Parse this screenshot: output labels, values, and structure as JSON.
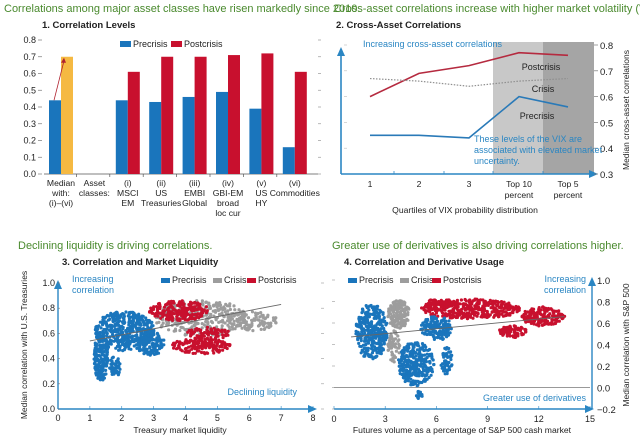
{
  "colors": {
    "precrisis": "#1a75bc",
    "crisis": "#9d9d9d",
    "postcrisis": "#c8102e",
    "median_post": "#f5b942",
    "headline": "#4a8a2e",
    "annotation": "#2a86c3",
    "shade_light": "#c8c8c8",
    "shade_dark": "#a5a5a5"
  },
  "headlines": {
    "h1": "Correlations among major asset classes have risen markedly since 2010.",
    "h2": "Cross-asset correlations increase with higher market volatility (VIX).",
    "h3": "Declining liquidity is driving correlations.",
    "h4": "Greater use of derivatives is also driving correlations higher."
  },
  "chart_data": [
    {
      "type": "bar",
      "title": "1. Correlation Levels",
      "legend": [
        "Precrisis",
        "Postcrisis"
      ],
      "legend_position": "top",
      "ylim": [
        0,
        0.8
      ],
      "yticks": [
        "0.0",
        "0.1",
        "0.2",
        "0.3",
        "0.4",
        "0.5",
        "0.6",
        "0.7",
        "0.8"
      ],
      "categories": [
        [
          "Median",
          "with:",
          "(i)–(vi)"
        ],
        [
          "Asset",
          "classes:"
        ],
        [
          "(i)",
          "MSCI",
          "EM"
        ],
        [
          "(ii)",
          "US",
          "Treasuries"
        ],
        [
          "(iii)",
          "EMBI",
          "Global"
        ],
        [
          "(iv)",
          "GBI-EM",
          "broad",
          "loc cur"
        ],
        [
          "(v)",
          "US",
          "HY"
        ],
        [
          "(vi)",
          "Commodities"
        ]
      ],
      "series": [
        {
          "name": "Precrisis",
          "values": [
            0.44,
            null,
            0.44,
            0.43,
            0.46,
            0.49,
            0.39,
            0.16
          ]
        },
        {
          "name": "Postcrisis",
          "values": [
            0.7,
            null,
            0.61,
            0.7,
            0.7,
            0.71,
            0.72,
            0.61
          ]
        }
      ],
      "median_arrow": {
        "from": 0.44,
        "to": 0.7
      }
    },
    {
      "type": "line",
      "title": "2. Cross-Asset Correlations",
      "xlabel": "Quartiles of VIX probability distribution",
      "ylabel": "Median cross-asset correlations",
      "ylim": [
        0.3,
        0.8
      ],
      "yticks": [
        "0.3",
        "0.4",
        "0.5",
        "0.6",
        "0.7",
        "0.8"
      ],
      "categories": [
        [
          "1"
        ],
        [
          "2"
        ],
        [
          "3"
        ],
        [
          "Top 10",
          "percent"
        ],
        [
          "Top 5",
          "percent"
        ]
      ],
      "series": [
        {
          "name": "Postcrisis",
          "values": [
            0.6,
            0.69,
            0.72,
            0.77,
            0.76
          ]
        },
        {
          "name": "Crisis",
          "values": [
            0.67,
            0.66,
            0.64,
            0.66,
            0.67
          ]
        },
        {
          "name": "Precrisis",
          "values": [
            0.45,
            0.45,
            0.44,
            0.6,
            0.56
          ]
        }
      ],
      "annotations": {
        "top": "Increasing cross-asset correlations",
        "box": [
          "These levels of the VIX are",
          "associated with elevated market",
          "uncertainty."
        ],
        "labels": [
          "Postcrisis",
          "Crisis",
          "Precrisis"
        ]
      }
    },
    {
      "type": "scatter",
      "title": "3. Correlation and Market Liquidity",
      "xlabel": "Treasury market liquidity",
      "ylabel": "Median correlation with U.S. Treasuries",
      "xlim": [
        0,
        8
      ],
      "ylim": [
        0,
        1.0
      ],
      "xticks": [
        "0",
        "1",
        "2",
        "3",
        "4",
        "5",
        "6",
        "7",
        "8"
      ],
      "yticks": [
        "0.0",
        "0.2",
        "0.4",
        "0.6",
        "0.8",
        "1.0"
      ],
      "legend": [
        "Precrisis",
        "Crisis",
        "Postcrisis"
      ],
      "legend_position": "top-right",
      "annotations": {
        "y_arrow": [
          "Increasing",
          "correlation"
        ],
        "x_arrow": "Declining liquidity"
      },
      "trend_line": [
        [
          1.0,
          0.54
        ],
        [
          7.0,
          0.83
        ]
      ],
      "clusters": [
        {
          "name": "Precrisis",
          "x_range": [
            1.1,
            4.0
          ],
          "y_range": [
            0.18,
            0.85
          ]
        },
        {
          "name": "Crisis",
          "x_range": [
            1.5,
            7.0
          ],
          "y_range": [
            0.38,
            0.86
          ]
        },
        {
          "name": "Postcrisis",
          "x_range": [
            3.2,
            5.5
          ],
          "y_range": [
            0.45,
            0.88
          ]
        }
      ]
    },
    {
      "type": "scatter",
      "title": "4. Correlation and Derivative Usage",
      "xlabel": "Futures volume as a percentage of S&P 500 cash market",
      "ylabel": "Median correlation with S&P 500",
      "xlim": [
        0,
        15
      ],
      "ylim": [
        -0.2,
        1.0
      ],
      "xticks": [
        "0",
        "3",
        "6",
        "9",
        "12",
        "15"
      ],
      "yticks": [
        "−0.2",
        "0.0",
        "0.2",
        "0.4",
        "0.6",
        "0.8",
        "1.0"
      ],
      "legend": [
        "Precrisis",
        "Crisis",
        "Postcrisis"
      ],
      "legend_position": "top-left",
      "annotations": {
        "y_arrow": [
          "Increasing",
          "correlation"
        ],
        "x_arrow": "Greater use of derivatives"
      },
      "trend_line": [
        [
          1.0,
          0.47
        ],
        [
          13.5,
          0.66
        ]
      ],
      "clusters": [
        {
          "name": "Precrisis",
          "x_range": [
            1.0,
            7.0
          ],
          "y_range": [
            -0.12,
            0.8
          ]
        },
        {
          "name": "Crisis",
          "x_range": [
            2.8,
            4.5
          ],
          "y_range": [
            0.15,
            0.82
          ]
        },
        {
          "name": "Postcrisis",
          "x_range": [
            4.2,
            13.8
          ],
          "y_range": [
            0.42,
            0.83
          ]
        }
      ]
    }
  ]
}
